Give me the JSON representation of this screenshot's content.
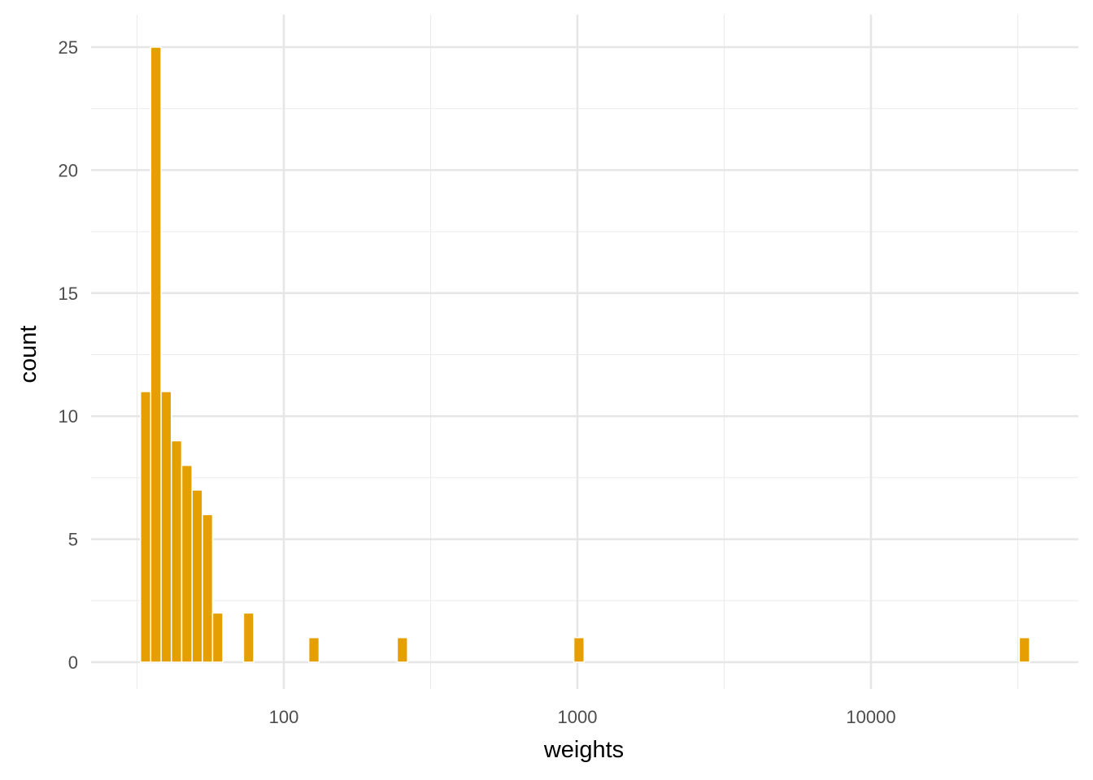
{
  "chart_data": {
    "type": "bar",
    "title": "",
    "xlabel": "weights",
    "ylabel": "count",
    "x_scale": "log10",
    "xlim": [
      23.4,
      46000
    ],
    "ylim": [
      0,
      26.25
    ],
    "x_ticks": [
      100,
      1000,
      10000
    ],
    "x_tick_labels": [
      "100",
      "1000",
      "10000"
    ],
    "y_ticks": [
      0,
      5,
      10,
      15,
      20,
      25
    ],
    "y_tick_labels": [
      "0",
      "5",
      "10",
      "15",
      "20",
      "25"
    ],
    "grid": true,
    "legend": "none",
    "bar_color": "#E69F00",
    "bins": [
      {
        "x_min": 32.5,
        "x_max": 35.2,
        "count": 11
      },
      {
        "x_min": 35.2,
        "x_max": 38.2,
        "count": 25
      },
      {
        "x_min": 38.2,
        "x_max": 41.4,
        "count": 11
      },
      {
        "x_min": 41.4,
        "x_max": 44.9,
        "count": 9
      },
      {
        "x_min": 44.9,
        "x_max": 48.7,
        "count": 8
      },
      {
        "x_min": 48.7,
        "x_max": 52.8,
        "count": 7
      },
      {
        "x_min": 52.8,
        "x_max": 57.2,
        "count": 6
      },
      {
        "x_min": 57.2,
        "x_max": 62.0,
        "count": 2
      },
      {
        "x_min": 67.2,
        "x_max": 72.9,
        "count": 0
      },
      {
        "x_min": 72.9,
        "x_max": 79.0,
        "count": 2
      },
      {
        "x_min": 121.6,
        "x_max": 131.9,
        "count": 1
      },
      {
        "x_min": 243.4,
        "x_max": 263.9,
        "count": 1
      },
      {
        "x_min": 972.0,
        "x_max": 1054.0,
        "count": 1
      },
      {
        "x_min": 32000,
        "x_max": 34700,
        "count": 1
      }
    ]
  }
}
